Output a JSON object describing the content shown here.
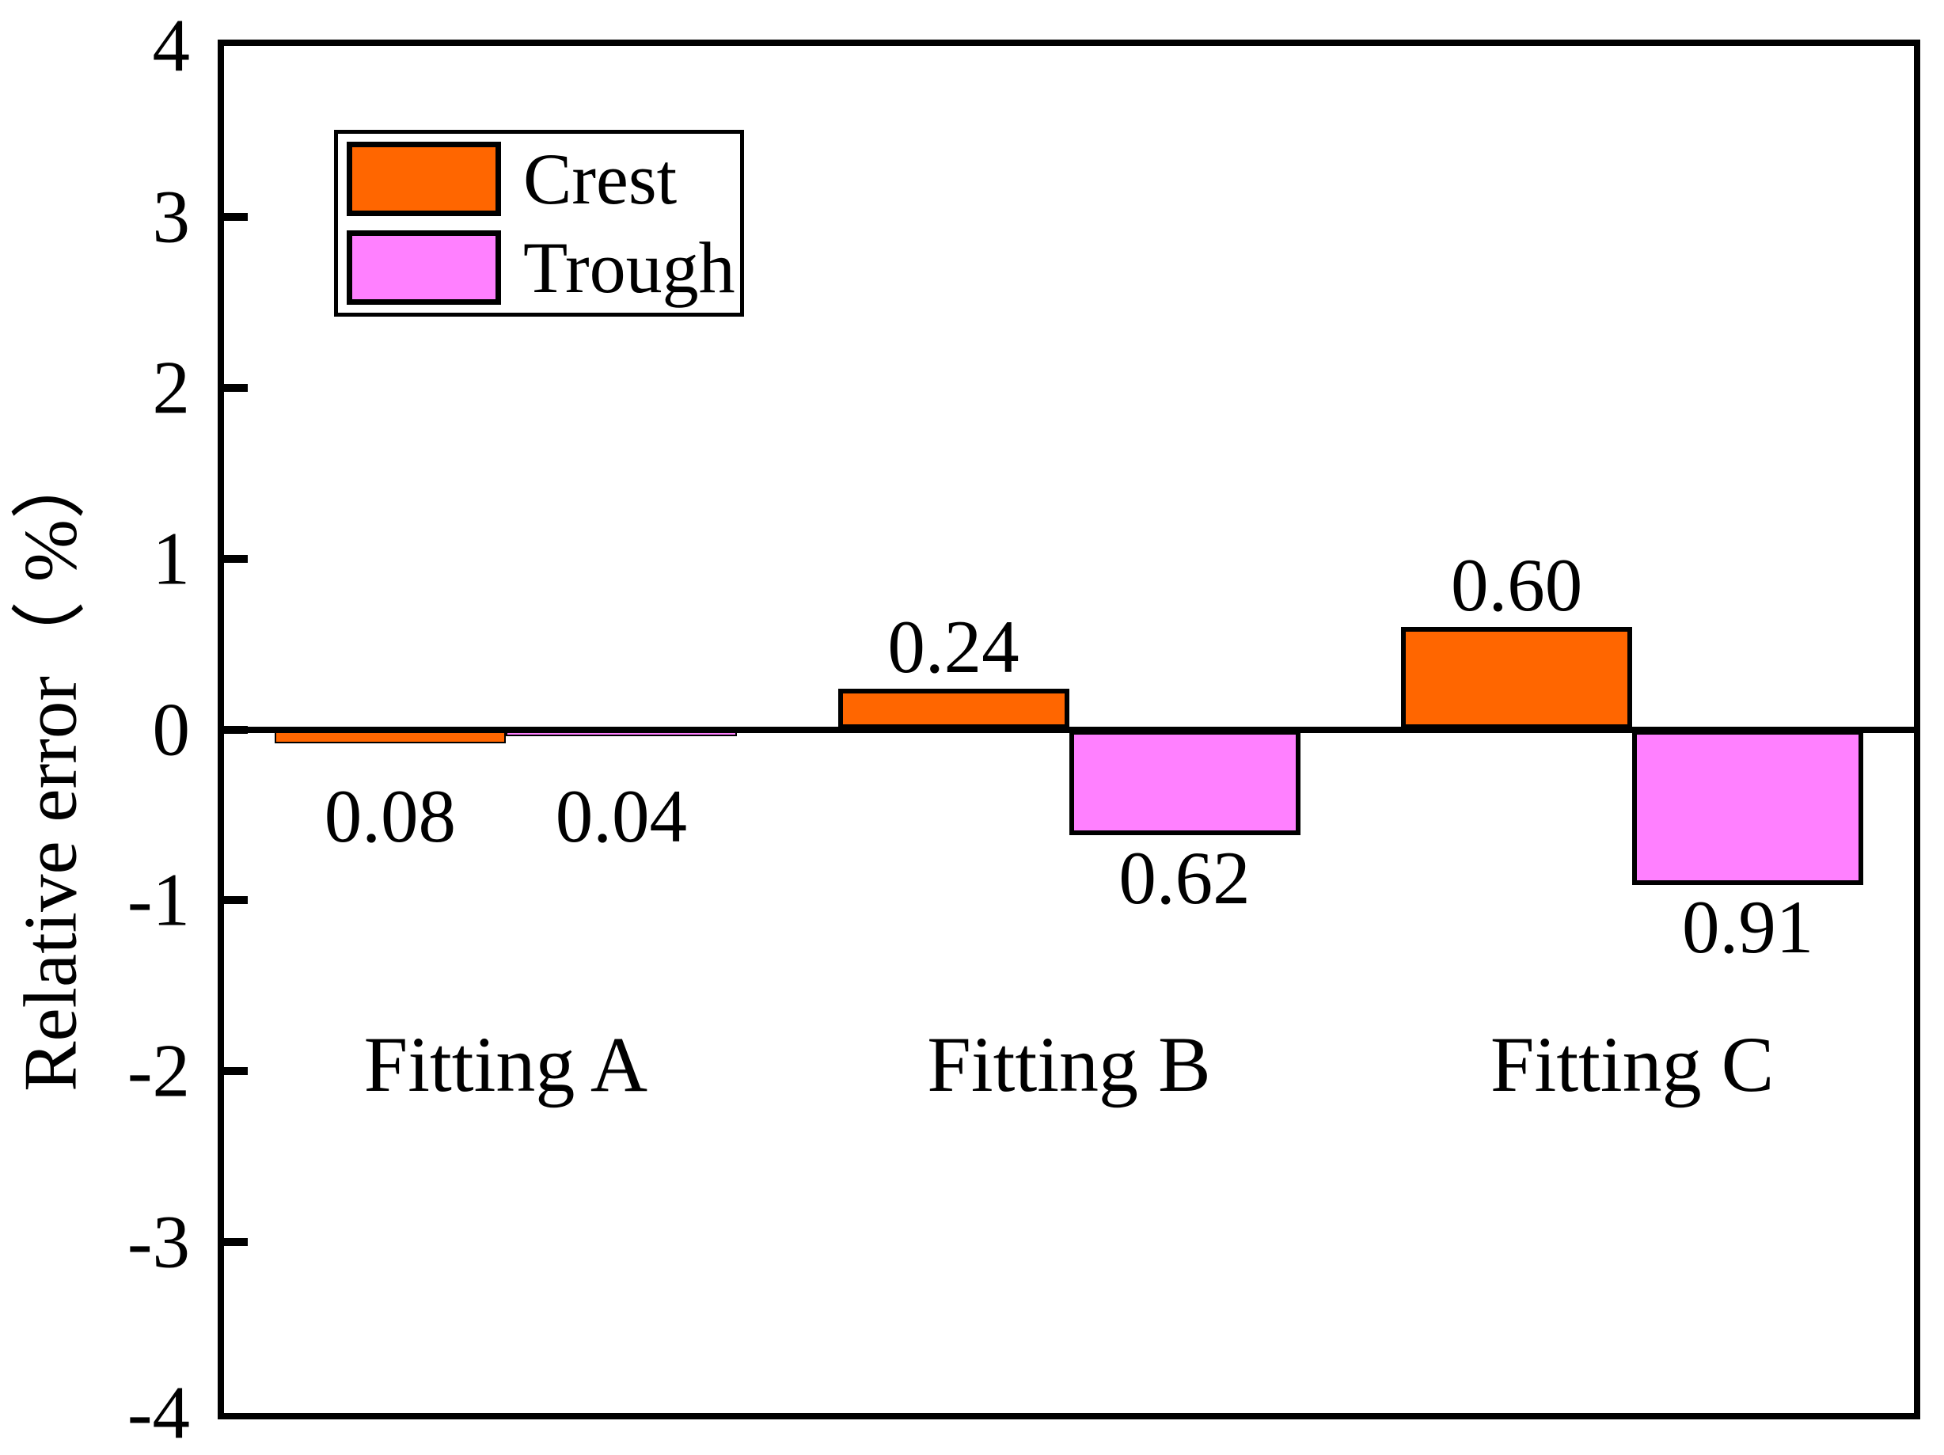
{
  "chart_data": {
    "type": "bar",
    "title": "",
    "ylabel": "Relative error（ %）",
    "ylim": [
      -4,
      4
    ],
    "ytick_interval": 1,
    "ytick_values": [
      4,
      3,
      2,
      1,
      0,
      -1,
      -2,
      -3,
      -4
    ],
    "ytick_labels": [
      "4",
      "3",
      "2",
      "1",
      "0",
      "-1",
      "-2",
      "-3",
      "-4"
    ],
    "categories": [
      "Fitting A",
      "Fitting B",
      "Fitting C"
    ],
    "series": [
      {
        "name": "Crest",
        "color": "#FF6600",
        "values": [
          -0.08,
          0.24,
          0.6
        ],
        "data_labels": [
          "0.08",
          "0.24",
          "0.60"
        ]
      },
      {
        "name": "Trough",
        "color": "#FF80FF",
        "values": [
          -0.04,
          -0.62,
          -0.91
        ],
        "data_labels": [
          "0.04",
          "0.62",
          "0.91"
        ]
      }
    ],
    "grid": false,
    "legend_position": "top-left",
    "axis_color": "#000000",
    "bar_edge_color": "#000000",
    "label_color": "#000000",
    "background_color": "#FFFFFF"
  }
}
